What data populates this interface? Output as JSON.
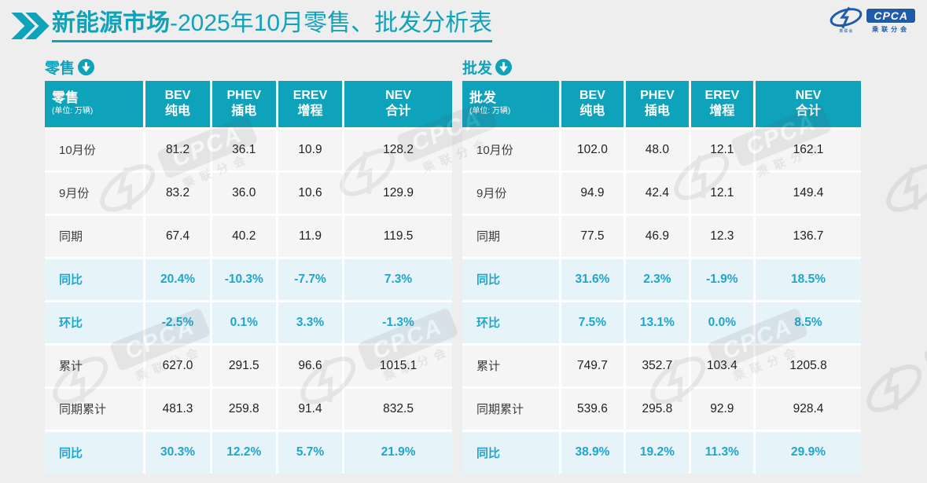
{
  "header": {
    "title_primary": "新能源市场",
    "title_secondary": "-2025年10月零售、批发分析表",
    "logo": {
      "brand": "CPCA",
      "caption": "乘联分会",
      "swoosh_caption": "乘联会"
    }
  },
  "colors": {
    "accent_teal": "#0FA2BB",
    "highlight_text": "#1FA6CC",
    "highlight_row_bg": "#E6F3F9",
    "row_bg": "#F5F5F6",
    "page_bg": "#EEEEEE",
    "logo_blue": "#1E5BA9",
    "header_text": "#FFFFFF"
  },
  "retail": {
    "section_label": "零售",
    "corner_title": "零售",
    "corner_unit": "(单位: 万辆)",
    "columns": [
      {
        "l1": "BEV",
        "l2": "纯电"
      },
      {
        "l1": "PHEV",
        "l2": "插电"
      },
      {
        "l1": "EREV",
        "l2": "增程"
      },
      {
        "l1": "NEV",
        "l2": "合计"
      }
    ],
    "rows": [
      {
        "label": "10月份",
        "values": [
          "81.2",
          "36.1",
          "10.9",
          "128.2"
        ],
        "highlight": false
      },
      {
        "label": "9月份",
        "values": [
          "83.2",
          "36.0",
          "10.6",
          "129.9"
        ],
        "highlight": false
      },
      {
        "label": "同期",
        "values": [
          "67.4",
          "40.2",
          "11.9",
          "119.5"
        ],
        "highlight": false
      },
      {
        "label": "同比",
        "values": [
          "20.4%",
          "-10.3%",
          "-7.7%",
          "7.3%"
        ],
        "highlight": true
      },
      {
        "label": "环比",
        "values": [
          "-2.5%",
          "0.1%",
          "3.3%",
          "-1.3%"
        ],
        "highlight": true
      },
      {
        "label": "累计",
        "values": [
          "627.0",
          "291.5",
          "96.6",
          "1015.1"
        ],
        "highlight": false
      },
      {
        "label": "同期累计",
        "values": [
          "481.3",
          "259.8",
          "91.4",
          "832.5"
        ],
        "highlight": false
      },
      {
        "label": "同比",
        "values": [
          "30.3%",
          "12.2%",
          "5.7%",
          "21.9%"
        ],
        "highlight": true
      }
    ]
  },
  "wholesale": {
    "section_label": "批发",
    "corner_title": "批发",
    "corner_unit": "(单位: 万辆)",
    "columns": [
      {
        "l1": "BEV",
        "l2": "纯电"
      },
      {
        "l1": "PHEV",
        "l2": "插电"
      },
      {
        "l1": "EREV",
        "l2": "增程"
      },
      {
        "l1": "NEV",
        "l2": "合计"
      }
    ],
    "rows": [
      {
        "label": "10月份",
        "values": [
          "102.0",
          "48.0",
          "12.1",
          "162.1"
        ],
        "highlight": false
      },
      {
        "label": "9月份",
        "values": [
          "94.9",
          "42.4",
          "12.1",
          "149.4"
        ],
        "highlight": false
      },
      {
        "label": "同期",
        "values": [
          "77.5",
          "46.9",
          "12.3",
          "136.7"
        ],
        "highlight": false
      },
      {
        "label": "同比",
        "values": [
          "31.6%",
          "2.3%",
          "-1.9%",
          "18.5%"
        ],
        "highlight": true
      },
      {
        "label": "环比",
        "values": [
          "7.5%",
          "13.1%",
          "0.0%",
          "8.5%"
        ],
        "highlight": true
      },
      {
        "label": "累计",
        "values": [
          "749.7",
          "352.7",
          "103.4",
          "1205.8"
        ],
        "highlight": false
      },
      {
        "label": "同期累计",
        "values": [
          "539.6",
          "295.8",
          "92.9",
          "928.4"
        ],
        "highlight": false
      },
      {
        "label": "同比",
        "values": [
          "38.9%",
          "19.2%",
          "11.3%",
          "29.9%"
        ],
        "highlight": true
      }
    ]
  },
  "watermark": {
    "brand": "CPCA",
    "caption": "乘联分会"
  }
}
